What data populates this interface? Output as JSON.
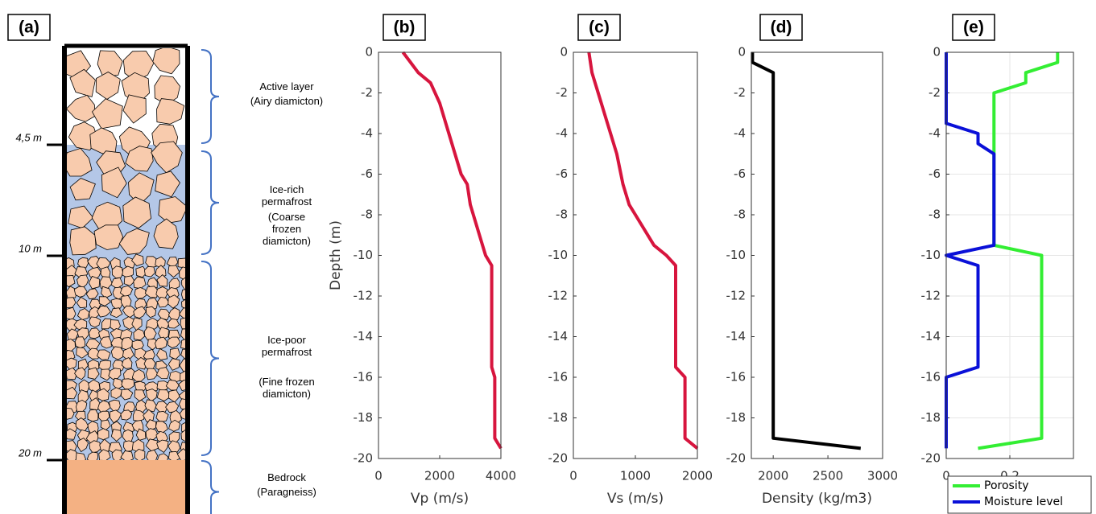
{
  "panel_a": {
    "label": "(a)",
    "depth_marks": [
      "4,5 m",
      "10 m",
      "20 m"
    ],
    "layers": [
      {
        "name": "Active layer",
        "description": "(Airy diamicton)"
      },
      {
        "name": "Ice-rich permafrost",
        "description": "(Coarse frozen diamicton)"
      },
      {
        "name": "Ice-poor permafrost",
        "description": "(Fine frozen diamicton)"
      },
      {
        "name": "Bedrock",
        "description": "(Paragneiss)"
      }
    ]
  },
  "chart_data": [
    {
      "type": "line",
      "panel_label": "(b)",
      "xlabel": "Vp (m/s)",
      "ylabel": "Depth (m)",
      "xlim": [
        0,
        4000
      ],
      "xticks": [
        0,
        2000,
        4000
      ],
      "ylim": [
        -20,
        0
      ],
      "yticks": [
        0,
        -2,
        -4,
        -6,
        -8,
        -10,
        -12,
        -14,
        -16,
        -18,
        -20
      ],
      "grid": false,
      "series": [
        {
          "color": "#d7153e",
          "x": [
            800,
            1300,
            1700,
            2000,
            2300,
            2700,
            2900,
            3000,
            3400,
            3500,
            3700,
            3700,
            3800,
            3800,
            4000
          ],
          "values": [
            0,
            -1,
            -1.5,
            -2.5,
            -4,
            -6,
            -6.5,
            -7.5,
            -9.5,
            -10,
            -10.5,
            -15.5,
            -16,
            -19,
            -19.5
          ]
        }
      ]
    },
    {
      "type": "line",
      "panel_label": "(c)",
      "xlabel": "Vs (m/s)",
      "xlim": [
        0,
        2000
      ],
      "xticks": [
        0,
        1000,
        2000
      ],
      "ylim": [
        -20,
        0
      ],
      "yticks": [
        0,
        -2,
        -4,
        -6,
        -8,
        -10,
        -12,
        -14,
        -16,
        -18,
        -20
      ],
      "grid": false,
      "series": [
        {
          "color": "#d7153e",
          "x": [
            250,
            300,
            400,
            500,
            700,
            800,
            900,
            1000,
            1300,
            1500,
            1650,
            1650,
            1800,
            1800,
            2000
          ],
          "values": [
            0,
            -1,
            -2,
            -3,
            -5,
            -6.5,
            -7.5,
            -8,
            -9.5,
            -10,
            -10.5,
            -15.5,
            -16,
            -19,
            -19.5
          ]
        }
      ]
    },
    {
      "type": "line",
      "panel_label": "(d)",
      "xlabel": "Density (kg/m3)",
      "xlim": [
        1800,
        3000
      ],
      "xticks": [
        2000,
        2500,
        3000
      ],
      "ylim": [
        -20,
        0
      ],
      "yticks": [
        0,
        -2,
        -4,
        -6,
        -8,
        -10,
        -12,
        -14,
        -16,
        -18,
        -20
      ],
      "grid": false,
      "series": [
        {
          "color": "#000000",
          "x": [
            1810,
            1810,
            2000,
            2000,
            2800
          ],
          "values": [
            0,
            -0.5,
            -1,
            -19,
            -19.5
          ]
        }
      ]
    },
    {
      "type": "line",
      "panel_label": "(e)",
      "xlim": [
        0,
        0.4
      ],
      "xticks": [
        0,
        0.2
      ],
      "ylim": [
        -20,
        0
      ],
      "yticks": [
        0,
        -2,
        -4,
        -6,
        -8,
        -10,
        -12,
        -14,
        -16,
        -18,
        -20
      ],
      "grid": true,
      "legend": "bottom",
      "series": [
        {
          "name": "Porosity",
          "color": "#33ee33",
          "x": [
            0.35,
            0.35,
            0.25,
            0.25,
            0.15,
            0.15,
            0.15,
            0.3,
            0.3,
            0.1
          ],
          "values": [
            0,
            -0.5,
            -1,
            -1.5,
            -2,
            -5,
            -9.5,
            -10,
            -19,
            -19.5
          ]
        },
        {
          "name": "Moisture level",
          "color": "#0a10d8",
          "x": [
            0,
            0,
            0.1,
            0.1,
            0.15,
            0.15,
            0,
            0.1,
            0.1,
            0,
            0
          ],
          "values": [
            0,
            -3.5,
            -4,
            -4.5,
            -5,
            -9.5,
            -10,
            -10.5,
            -15.5,
            -16,
            -19.5
          ]
        }
      ]
    }
  ]
}
